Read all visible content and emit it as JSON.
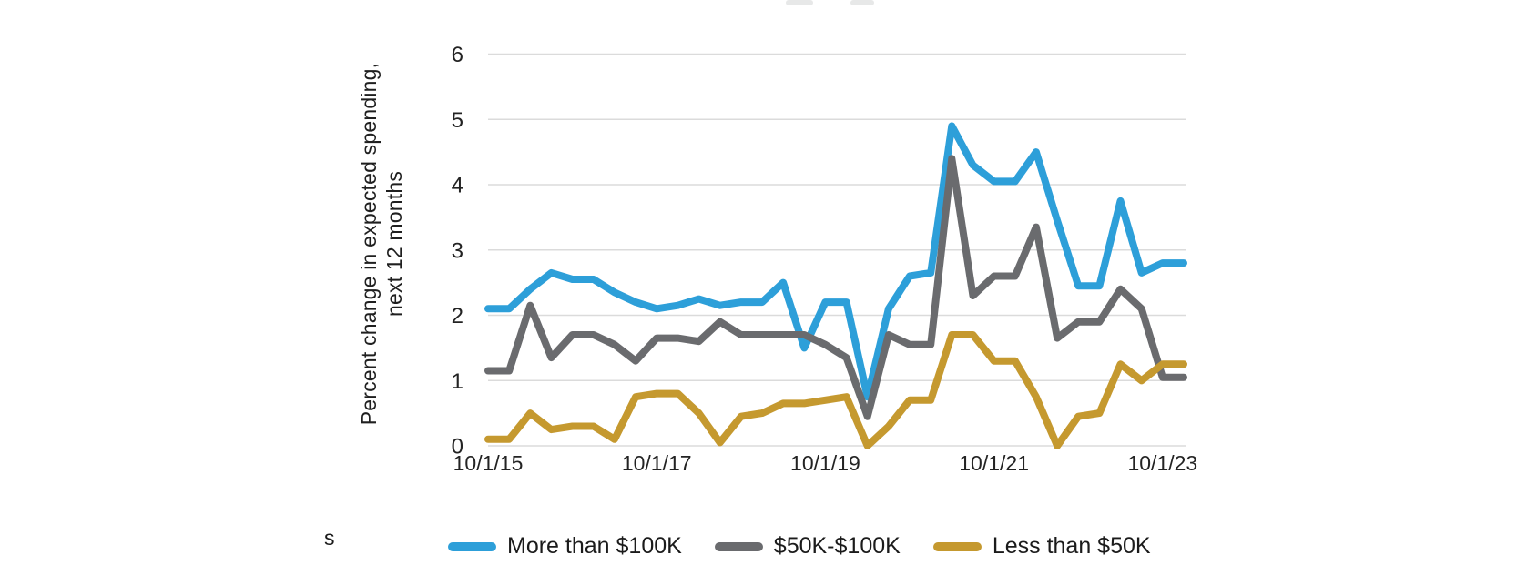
{
  "chart_data": {
    "type": "line",
    "ylabel_line1": "Percent change in expected spending,",
    "ylabel_line2": "next 12 months",
    "ylim": [
      0,
      6
    ],
    "yticks": [
      0,
      1,
      2,
      3,
      4,
      5,
      6
    ],
    "n_points": 34,
    "x_tick_labels": [
      "10/1/15",
      "10/1/17",
      "10/1/19",
      "10/1/21",
      "10/1/23"
    ],
    "x_tick_indices": [
      0,
      8,
      16,
      24,
      32
    ],
    "grid": true,
    "legend_position": "bottom",
    "colors": {
      "gridline": "#dbdbdb",
      "axis_text": "#232323"
    },
    "series": [
      {
        "name": "More than $100K",
        "color": "#2D9FD9",
        "values": [
          2.1,
          2.1,
          2.4,
          2.65,
          2.55,
          2.55,
          2.35,
          2.2,
          2.1,
          2.15,
          2.25,
          2.15,
          2.2,
          2.2,
          2.5,
          1.5,
          2.2,
          2.2,
          0.75,
          2.1,
          2.6,
          2.65,
          4.9,
          4.3,
          4.05,
          4.05,
          4.5,
          3.45,
          2.45,
          2.45,
          3.75,
          2.65,
          2.8,
          2.8
        ]
      },
      {
        "name": "$50K-$100K",
        "color": "#6A6B6E",
        "values": [
          1.15,
          1.15,
          2.15,
          1.35,
          1.7,
          1.7,
          1.55,
          1.3,
          1.65,
          1.65,
          1.6,
          1.9,
          1.7,
          1.7,
          1.7,
          1.7,
          1.55,
          1.35,
          0.45,
          1.7,
          1.55,
          1.55,
          4.4,
          2.3,
          2.6,
          2.6,
          3.35,
          1.65,
          1.9,
          1.9,
          2.4,
          2.1,
          1.05,
          1.05
        ]
      },
      {
        "name": "Less than $50K",
        "color": "#C5992F",
        "values": [
          0.1,
          0.1,
          0.5,
          0.25,
          0.3,
          0.3,
          0.1,
          0.75,
          0.8,
          0.8,
          0.5,
          0.05,
          0.45,
          0.5,
          0.65,
          0.65,
          0.7,
          0.75,
          0.0,
          0.3,
          0.7,
          0.7,
          1.7,
          1.7,
          1.3,
          1.3,
          0.75,
          0.0,
          0.45,
          0.5,
          1.25,
          1.0,
          1.25,
          1.25
        ]
      }
    ]
  },
  "source_note_fragment": "s"
}
